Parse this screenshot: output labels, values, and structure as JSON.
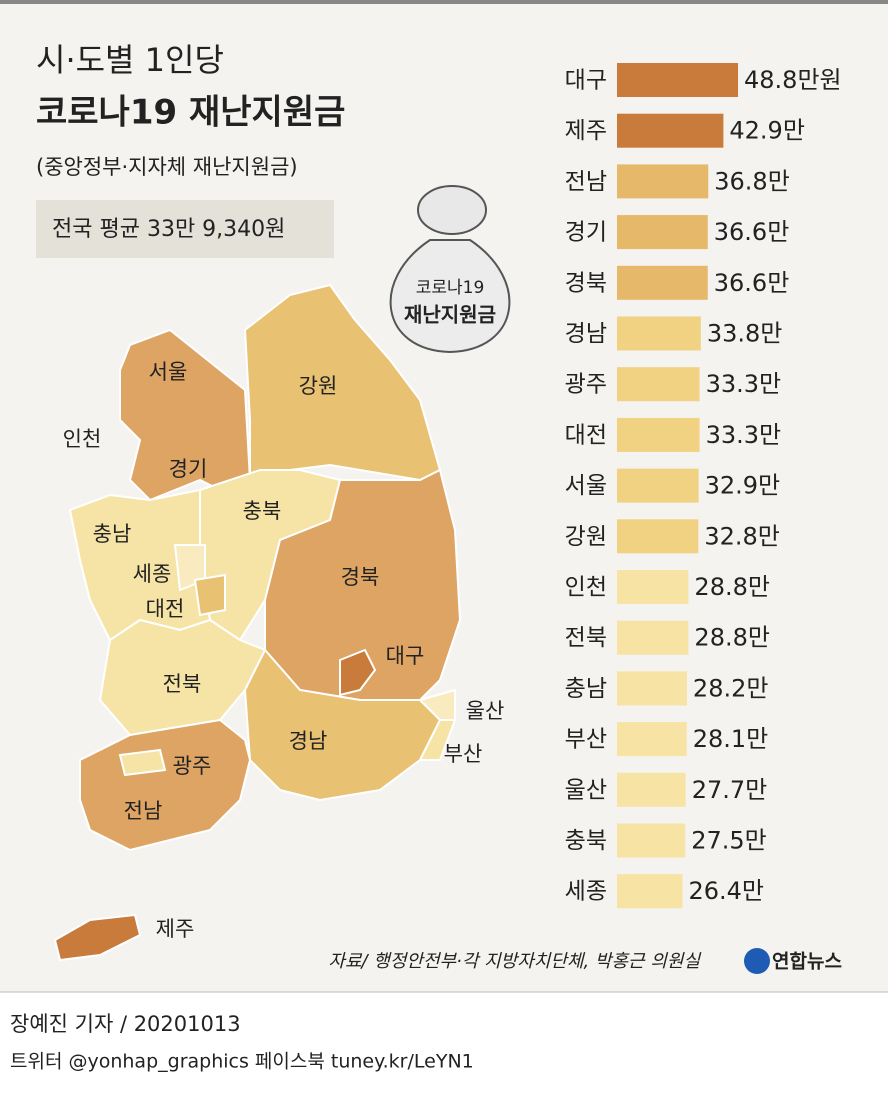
{
  "header": {
    "title_line1": "시·도별 1인당",
    "title_line2": "코로나19 재난지원금",
    "subtitle": "(중앙정부·지자체 재난지원금)",
    "average": "전국 평균 33만 9,340원"
  },
  "bag": {
    "line1": "코로나19",
    "line2": "재난지원금"
  },
  "chart_data": {
    "type": "bar",
    "orientation": "horizontal",
    "categories": [
      "대구",
      "제주",
      "전남",
      "경기",
      "경북",
      "경남",
      "광주",
      "대전",
      "서울",
      "강원",
      "인천",
      "전북",
      "충남",
      "부산",
      "울산",
      "충북",
      "세종"
    ],
    "values": [
      48.8,
      42.9,
      36.8,
      36.6,
      36.6,
      33.8,
      33.3,
      33.3,
      32.9,
      32.8,
      28.8,
      28.8,
      28.2,
      28.1,
      27.7,
      27.5,
      26.4
    ],
    "value_labels": [
      "48.8만원",
      "42.9만",
      "36.8만",
      "36.6만",
      "36.6만",
      "33.8만",
      "33.3만",
      "33.3만",
      "32.9만",
      "32.8만",
      "28.8만",
      "28.8만",
      "28.2만",
      "28.1만",
      "27.7만",
      "27.5만",
      "26.4만"
    ],
    "colors": [
      "#c97b3b",
      "#c97b3b",
      "#e6b86a",
      "#e6b86a",
      "#e6b86a",
      "#f1d282",
      "#f1d282",
      "#f1d282",
      "#f1d282",
      "#f1d282",
      "#f7e3a3",
      "#f7e3a3",
      "#f7e3a3",
      "#f7e3a3",
      "#f7e3a3",
      "#f7e3a3",
      "#f7e3a3"
    ]
  },
  "map": {
    "regions": [
      "서울",
      "인천",
      "경기",
      "강원",
      "충북",
      "충남",
      "세종",
      "대전",
      "경북",
      "대구",
      "전북",
      "울산",
      "경남",
      "부산",
      "광주",
      "전남",
      "제주"
    ]
  },
  "source": "자료/ 행정안전부·각 지방자치단체, 박홍근 의원실",
  "logo": "연합뉴스",
  "footer": {
    "byline": "장예진 기자 / 20201013",
    "links": "트위터 @yonhap_graphics  페이스북 tuney.kr/LeYN1"
  }
}
